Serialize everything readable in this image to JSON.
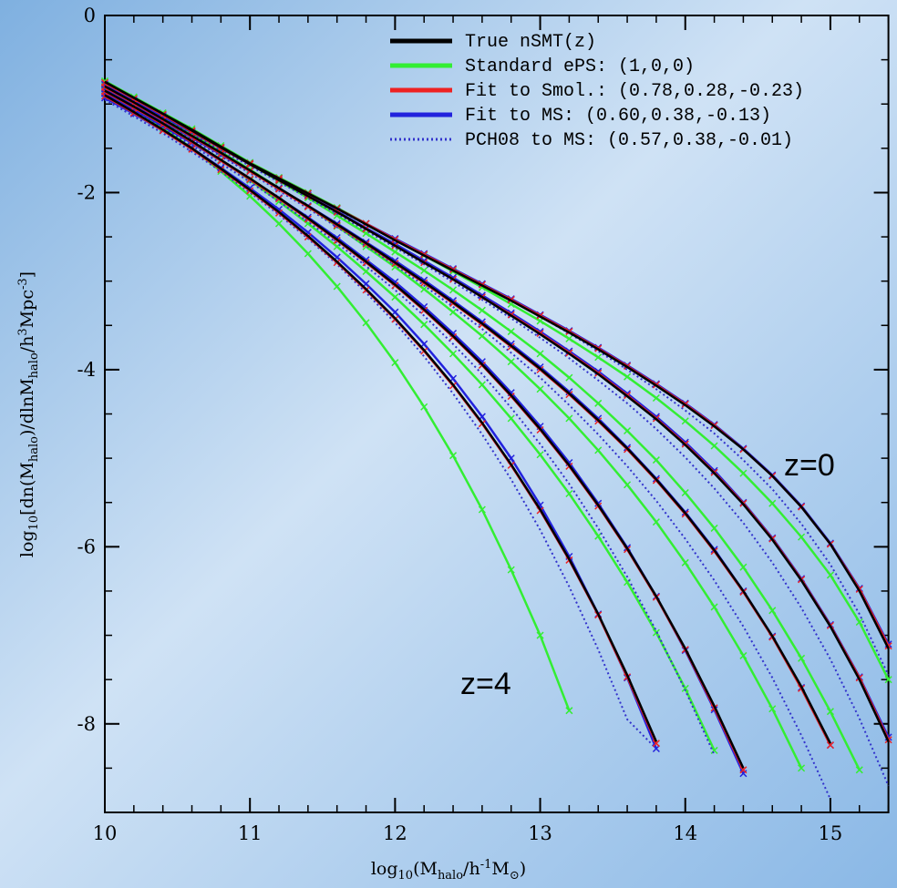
{
  "chart_data": {
    "type": "line",
    "xlabel": [
      "log",
      "10",
      "(M",
      "halo",
      "/h",
      "-1",
      "M",
      "⊙",
      ")"
    ],
    "ylabel": [
      "log",
      "10",
      "[dn(M",
      "halo",
      ")/dlnM",
      "halo",
      "/h",
      "3",
      "Mpc",
      "-3",
      "]"
    ],
    "xlim": [
      10,
      15.4
    ],
    "ylim": [
      -9,
      0
    ],
    "xticks": [
      10,
      11,
      12,
      13,
      14,
      15
    ],
    "yticks": [
      0,
      -2,
      -4,
      -6,
      -8
    ],
    "annotations": [
      "z=0",
      "z=4"
    ],
    "x": [
      10,
      10.2,
      10.4,
      10.6,
      10.8,
      11,
      11.2,
      11.4,
      11.6,
      11.8,
      12,
      12.2,
      12.4,
      12.6,
      12.8,
      13,
      13.2,
      13.4,
      13.6,
      13.8,
      14,
      14.2,
      14.4,
      14.6,
      14.8,
      15,
      15.2,
      15.4
    ],
    "series": [
      {
        "name": "True nSMT(z)",
        "color": "#000000",
        "dash": false,
        "markers": false,
        "curves": [
          [
            -0.75,
            -0.93,
            -1.11,
            -1.29,
            -1.48,
            -1.67,
            -1.84,
            -2.01,
            -2.18,
            -2.36,
            -2.54,
            -2.71,
            -2.88,
            -3.05,
            -3.22,
            -3.4,
            -3.58,
            -3.77,
            -3.97,
            -4.18,
            -4.4,
            -4.64,
            -4.9,
            -5.2,
            -5.55,
            -5.97,
            -6.5,
            -7.15
          ],
          [
            -0.75,
            -0.93,
            -1.11,
            -1.3,
            -1.49,
            -1.68,
            -1.86,
            -2.04,
            -2.22,
            -2.41,
            -2.6,
            -2.79,
            -2.98,
            -3.18,
            -3.39,
            -3.6,
            -3.82,
            -4.05,
            -4.3,
            -4.56,
            -4.85,
            -5.17,
            -5.52,
            -5.92,
            -6.38,
            -6.9,
            -7.5,
            -8.2
          ],
          [
            -0.8,
            -0.98,
            -1.17,
            -1.36,
            -1.55,
            -1.75,
            -1.95,
            -2.15,
            -2.36,
            -2.57,
            -2.79,
            -3.01,
            -3.24,
            -3.48,
            -3.73,
            -3.99,
            -4.27,
            -4.57,
            -4.89,
            -5.24,
            -5.62,
            -6.04,
            -6.5,
            -7.01,
            -7.58,
            -8.22,
            null,
            null
          ],
          [
            -0.85,
            -1.03,
            -1.22,
            -1.42,
            -1.63,
            -1.84,
            -2.06,
            -2.29,
            -2.53,
            -2.78,
            -3.04,
            -3.32,
            -3.62,
            -3.94,
            -4.29,
            -4.67,
            -5.08,
            -5.53,
            -6.02,
            -6.56,
            -7.15,
            -7.8,
            -8.5,
            null,
            null,
            null,
            null,
            null
          ],
          [
            -0.9,
            -1.09,
            -1.29,
            -1.5,
            -1.73,
            -1.97,
            -2.22,
            -2.49,
            -2.78,
            -3.09,
            -3.42,
            -3.78,
            -4.17,
            -4.6,
            -5.07,
            -5.58,
            -6.14,
            -6.76,
            -7.45,
            -8.2,
            null,
            null,
            null,
            null,
            null,
            null,
            null,
            null
          ]
        ]
      },
      {
        "name": "Standard ePS: (1,0,0)",
        "color": "#33ee33",
        "dash": false,
        "markers": true,
        "curves": [
          [
            -0.74,
            -0.92,
            -1.1,
            -1.28,
            -1.47,
            -1.66,
            -1.83,
            -2.0,
            -2.17,
            -2.35,
            -2.53,
            -2.71,
            -2.89,
            -3.07,
            -3.26,
            -3.45,
            -3.65,
            -3.86,
            -4.08,
            -4.32,
            -4.58,
            -4.86,
            -5.17,
            -5.51,
            -5.89,
            -6.32,
            -6.85,
            -7.5
          ],
          [
            -0.75,
            -0.93,
            -1.11,
            -1.3,
            -1.49,
            -1.68,
            -1.87,
            -2.06,
            -2.26,
            -2.46,
            -2.67,
            -2.88,
            -3.1,
            -3.33,
            -3.57,
            -3.82,
            -4.09,
            -4.38,
            -4.69,
            -5.02,
            -5.39,
            -5.79,
            -6.23,
            -6.72,
            -7.26,
            -7.86,
            -8.52,
            null
          ],
          [
            -0.78,
            -0.96,
            -1.15,
            -1.34,
            -1.54,
            -1.74,
            -1.95,
            -2.16,
            -2.38,
            -2.61,
            -2.84,
            -3.09,
            -3.35,
            -3.62,
            -3.91,
            -4.22,
            -4.55,
            -4.91,
            -5.3,
            -5.72,
            -6.18,
            -6.68,
            -7.23,
            -7.83,
            -8.5,
            null,
            null,
            null
          ],
          [
            -0.82,
            -1.01,
            -1.21,
            -1.42,
            -1.63,
            -1.86,
            -2.1,
            -2.35,
            -2.61,
            -2.89,
            -3.18,
            -3.49,
            -3.82,
            -4.17,
            -4.55,
            -4.96,
            -5.4,
            -5.88,
            -6.4,
            -6.97,
            -7.6,
            -8.3,
            null,
            null,
            null,
            null,
            null,
            null
          ],
          [
            -0.85,
            -1.05,
            -1.27,
            -1.5,
            -1.76,
            -2.04,
            -2.35,
            -2.69,
            -3.06,
            -3.47,
            -3.92,
            -4.42,
            -4.97,
            -5.58,
            -6.26,
            -7.0,
            -7.85,
            null,
            null,
            null,
            null,
            null,
            null,
            null,
            null,
            null,
            null,
            null
          ]
        ]
      },
      {
        "name": "Fit to Smol.: (0.78,0.28,-0.23)",
        "color": "#ee2222",
        "dash": false,
        "markers": true,
        "curves": [
          [
            -0.76,
            -0.94,
            -1.12,
            -1.3,
            -1.49,
            -1.67,
            -1.84,
            -2.01,
            -2.18,
            -2.35,
            -2.53,
            -2.7,
            -2.87,
            -3.04,
            -3.21,
            -3.39,
            -3.57,
            -3.76,
            -3.96,
            -4.17,
            -4.39,
            -4.63,
            -4.9,
            -5.2,
            -5.55,
            -5.97,
            -6.48,
            -7.12
          ],
          [
            -0.76,
            -0.94,
            -1.12,
            -1.31,
            -1.5,
            -1.68,
            -1.86,
            -2.04,
            -2.22,
            -2.41,
            -2.6,
            -2.79,
            -2.98,
            -3.18,
            -3.38,
            -3.59,
            -3.81,
            -4.04,
            -4.29,
            -4.55,
            -4.84,
            -5.16,
            -5.51,
            -5.91,
            -6.37,
            -6.89,
            -7.48,
            -8.18
          ],
          [
            -0.81,
            -0.99,
            -1.18,
            -1.37,
            -1.56,
            -1.76,
            -1.96,
            -2.16,
            -2.37,
            -2.58,
            -2.8,
            -3.02,
            -3.25,
            -3.49,
            -3.74,
            -4.0,
            -4.28,
            -4.58,
            -4.9,
            -5.25,
            -5.63,
            -6.05,
            -6.51,
            -7.02,
            -7.6,
            -8.24,
            null,
            null
          ],
          [
            -0.86,
            -1.04,
            -1.23,
            -1.43,
            -1.64,
            -1.85,
            -2.07,
            -2.3,
            -2.54,
            -2.79,
            -3.05,
            -3.33,
            -3.63,
            -3.95,
            -4.3,
            -4.68,
            -5.09,
            -5.54,
            -6.03,
            -6.57,
            -7.16,
            -7.82,
            -8.52,
            null,
            null,
            null,
            null,
            null
          ],
          [
            -0.91,
            -1.1,
            -1.3,
            -1.51,
            -1.74,
            -1.98,
            -2.23,
            -2.5,
            -2.79,
            -3.1,
            -3.43,
            -3.79,
            -4.18,
            -4.61,
            -5.08,
            -5.59,
            -6.15,
            -6.77,
            -7.47,
            -8.22,
            null,
            null,
            null,
            null,
            null,
            null,
            null,
            null
          ]
        ]
      },
      {
        "name": "Fit to MS: (0.60,0.38,-0.13)",
        "color": "#2222dd",
        "dash": false,
        "markers": true,
        "curves": [
          [
            -0.78,
            -0.96,
            -1.13,
            -1.31,
            -1.49,
            -1.67,
            -1.84,
            -2.01,
            -2.18,
            -2.35,
            -2.52,
            -2.69,
            -2.86,
            -3.03,
            -3.2,
            -3.38,
            -3.56,
            -3.75,
            -3.95,
            -4.16,
            -4.38,
            -4.62,
            -4.89,
            -5.19,
            -5.54,
            -5.96,
            -6.47,
            -7.1
          ],
          [
            -0.78,
            -0.96,
            -1.14,
            -1.32,
            -1.5,
            -1.68,
            -1.86,
            -2.03,
            -2.21,
            -2.4,
            -2.58,
            -2.77,
            -2.96,
            -3.16,
            -3.36,
            -3.57,
            -3.79,
            -4.02,
            -4.27,
            -4.53,
            -4.82,
            -5.14,
            -5.5,
            -5.9,
            -6.36,
            -6.88,
            -7.47,
            -8.15
          ],
          [
            -0.83,
            -1.01,
            -1.19,
            -1.38,
            -1.57,
            -1.76,
            -1.95,
            -2.15,
            -2.35,
            -2.56,
            -2.77,
            -2.99,
            -3.22,
            -3.46,
            -3.71,
            -3.97,
            -4.25,
            -4.55,
            -4.88,
            -5.23,
            -5.61,
            -6.03,
            -6.5,
            -7.01,
            -7.59,
            -8.24,
            null,
            null
          ],
          [
            -0.88,
            -1.06,
            -1.25,
            -1.44,
            -1.64,
            -1.85,
            -2.06,
            -2.28,
            -2.51,
            -2.76,
            -3.01,
            -3.29,
            -3.59,
            -3.91,
            -4.26,
            -4.64,
            -5.05,
            -5.51,
            -6.01,
            -6.56,
            -7.17,
            -7.84,
            -8.56,
            null,
            null,
            null,
            null,
            null
          ],
          [
            -0.93,
            -1.11,
            -1.3,
            -1.5,
            -1.72,
            -1.95,
            -2.19,
            -2.45,
            -2.73,
            -3.03,
            -3.35,
            -3.71,
            -4.1,
            -4.53,
            -5.0,
            -5.53,
            -6.11,
            -6.76,
            -7.48,
            -8.28,
            null,
            null,
            null,
            null,
            null,
            null,
            null,
            null
          ]
        ]
      },
      {
        "name": "PCH08 to MS: (0.57,0.38,-0.01)",
        "color": "#3333cc",
        "dash": true,
        "markers": false,
        "curves": [
          [
            -0.8,
            -0.97,
            -1.14,
            -1.32,
            -1.5,
            -1.68,
            -1.85,
            -2.02,
            -2.19,
            -2.36,
            -2.53,
            -2.7,
            -2.87,
            -3.04,
            -3.22,
            -3.4,
            -3.59,
            -3.79,
            -4.0,
            -4.22,
            -4.46,
            -4.72,
            -5.02,
            -5.35,
            -5.74,
            -6.2,
            -6.76,
            -7.45
          ],
          [
            -0.8,
            -0.98,
            -1.16,
            -1.34,
            -1.52,
            -1.7,
            -1.88,
            -2.06,
            -2.24,
            -2.43,
            -2.62,
            -2.81,
            -3.01,
            -3.21,
            -3.42,
            -3.64,
            -3.87,
            -4.12,
            -4.38,
            -4.67,
            -4.99,
            -5.34,
            -5.73,
            -6.18,
            -6.69,
            -7.27,
            -7.94,
            -8.7
          ],
          [
            -0.85,
            -1.03,
            -1.21,
            -1.4,
            -1.59,
            -1.78,
            -1.98,
            -2.18,
            -2.39,
            -2.6,
            -2.82,
            -3.05,
            -3.29,
            -3.54,
            -3.81,
            -4.09,
            -4.4,
            -4.73,
            -5.09,
            -5.48,
            -5.91,
            -6.38,
            -6.9,
            -7.48,
            -8.13,
            -8.85,
            null,
            null
          ],
          [
            -0.9,
            -1.08,
            -1.27,
            -1.47,
            -1.67,
            -1.88,
            -2.1,
            -2.33,
            -2.57,
            -2.83,
            -3.1,
            -3.39,
            -3.71,
            -4.05,
            -4.43,
            -4.84,
            -5.29,
            -5.79,
            -6.34,
            -6.95,
            -7.62,
            -8.35,
            null,
            null,
            null,
            null,
            null,
            null
          ],
          [
            -0.95,
            -1.14,
            -1.33,
            -1.54,
            -1.76,
            -2.0,
            -2.25,
            -2.52,
            -2.81,
            -3.13,
            -3.47,
            -3.85,
            -4.27,
            -4.73,
            -5.24,
            -5.81,
            -6.45,
            -7.16,
            -7.95,
            -8.28,
            null,
            null,
            null,
            null,
            null,
            null,
            null,
            null
          ]
        ]
      }
    ]
  }
}
